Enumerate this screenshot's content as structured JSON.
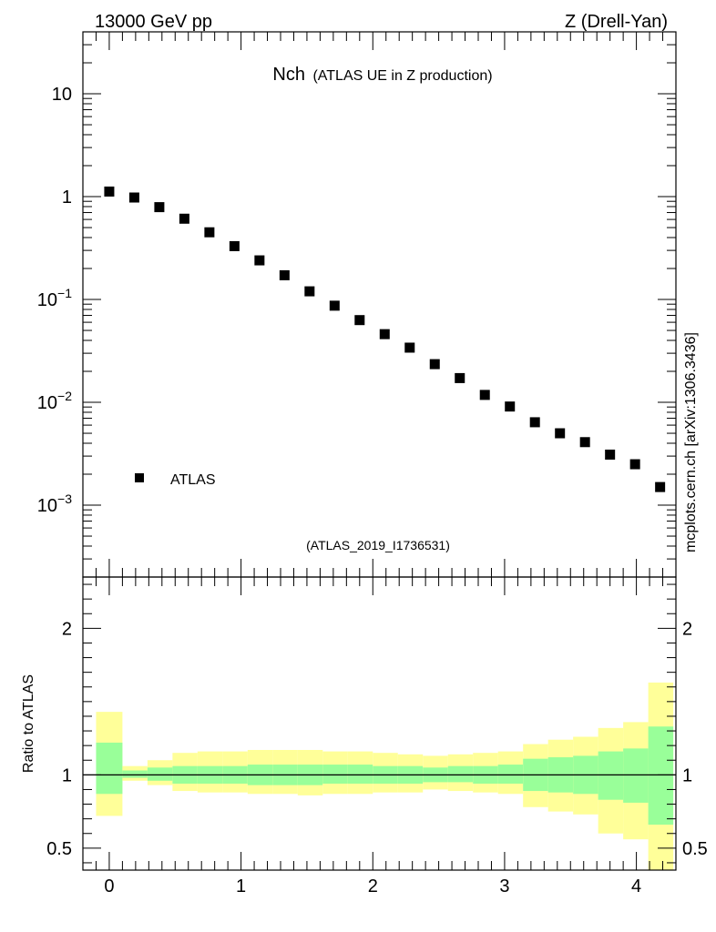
{
  "header": {
    "left": "13000 GeV pp",
    "right": "Z (Drell-Yan)"
  },
  "side_note": "mcplots.cern.ch [arXiv:1306.3436]",
  "chart_data": [
    {
      "type": "scatter",
      "title_main": "Nch",
      "title_sub": "(ATLAS UE in Z production)",
      "analysis_label": "(ATLAS_2019_I1736531)",
      "yscale": "log",
      "ylim": [
        0.0002,
        40
      ],
      "xlim": [
        -0.2,
        4.3
      ],
      "ytick_labels": [
        {
          "value": 10,
          "base": "10",
          "exp": ""
        },
        {
          "value": 1,
          "base": "1",
          "exp": ""
        },
        {
          "value": 0.1,
          "base": "10",
          "exp": "−1"
        },
        {
          "value": 0.01,
          "base": "10",
          "exp": "−2"
        },
        {
          "value": 0.001,
          "base": "10",
          "exp": "−3"
        }
      ],
      "legend": {
        "label": "ATLAS",
        "placement": "lower-left"
      },
      "series": [
        {
          "name": "ATLAS",
          "x": [
            0.0,
            0.19,
            0.38,
            0.57,
            0.76,
            0.95,
            1.14,
            1.33,
            1.52,
            1.71,
            1.9,
            2.09,
            2.28,
            2.47,
            2.66,
            2.85,
            3.04,
            3.23,
            3.42,
            3.61,
            3.8,
            3.99,
            4.18
          ],
          "y": [
            1.12,
            0.98,
            0.79,
            0.61,
            0.45,
            0.33,
            0.24,
            0.172,
            0.12,
            0.087,
            0.063,
            0.046,
            0.034,
            0.0235,
            0.0172,
            0.0118,
            0.0091,
            0.0064,
            0.005,
            0.0041,
            0.0031,
            0.0025,
            0.0015
          ]
        }
      ]
    },
    {
      "type": "area",
      "ylabel": "Ratio to ATLAS",
      "ylim": [
        0.35,
        2.35
      ],
      "xlim": [
        -0.2,
        4.3
      ],
      "yticks": [
        0.5,
        1,
        2
      ],
      "ytick_labels": [
        "0.5",
        "1",
        "2"
      ],
      "xticks": [
        0,
        1,
        2,
        3,
        4
      ],
      "xtick_labels": [
        "0",
        "1",
        "2",
        "3",
        "4"
      ],
      "reference": 1,
      "bins": [
        {
          "lo": -0.1,
          "hi": 0.1,
          "g": [
            0.87,
            1.22
          ],
          "y": [
            0.72,
            1.43
          ]
        },
        {
          "lo": 0.1,
          "hi": 0.29,
          "g": [
            0.98,
            1.03
          ],
          "y": [
            0.96,
            1.06
          ]
        },
        {
          "lo": 0.29,
          "hi": 0.48,
          "g": [
            0.96,
            1.05
          ],
          "y": [
            0.93,
            1.1
          ]
        },
        {
          "lo": 0.48,
          "hi": 0.67,
          "g": [
            0.94,
            1.06
          ],
          "y": [
            0.89,
            1.15
          ]
        },
        {
          "lo": 0.67,
          "hi": 0.86,
          "g": [
            0.94,
            1.06
          ],
          "y": [
            0.88,
            1.16
          ]
        },
        {
          "lo": 0.86,
          "hi": 1.05,
          "g": [
            0.94,
            1.06
          ],
          "y": [
            0.88,
            1.16
          ]
        },
        {
          "lo": 1.05,
          "hi": 1.24,
          "g": [
            0.93,
            1.07
          ],
          "y": [
            0.87,
            1.17
          ]
        },
        {
          "lo": 1.24,
          "hi": 1.43,
          "g": [
            0.93,
            1.07
          ],
          "y": [
            0.87,
            1.17
          ]
        },
        {
          "lo": 1.43,
          "hi": 1.62,
          "g": [
            0.93,
            1.07
          ],
          "y": [
            0.86,
            1.17
          ]
        },
        {
          "lo": 1.62,
          "hi": 1.81,
          "g": [
            0.94,
            1.07
          ],
          "y": [
            0.87,
            1.16
          ]
        },
        {
          "lo": 1.81,
          "hi": 2.0,
          "g": [
            0.94,
            1.07
          ],
          "y": [
            0.87,
            1.16
          ]
        },
        {
          "lo": 2.0,
          "hi": 2.19,
          "g": [
            0.94,
            1.06
          ],
          "y": [
            0.88,
            1.15
          ]
        },
        {
          "lo": 2.19,
          "hi": 2.38,
          "g": [
            0.94,
            1.06
          ],
          "y": [
            0.88,
            1.14
          ]
        },
        {
          "lo": 2.38,
          "hi": 2.57,
          "g": [
            0.95,
            1.05
          ],
          "y": [
            0.9,
            1.13
          ]
        },
        {
          "lo": 2.57,
          "hi": 2.76,
          "g": [
            0.95,
            1.06
          ],
          "y": [
            0.89,
            1.14
          ]
        },
        {
          "lo": 2.76,
          "hi": 2.95,
          "g": [
            0.94,
            1.06
          ],
          "y": [
            0.88,
            1.15
          ]
        },
        {
          "lo": 2.95,
          "hi": 3.14,
          "g": [
            0.94,
            1.07
          ],
          "y": [
            0.87,
            1.16
          ]
        },
        {
          "lo": 3.14,
          "hi": 3.33,
          "g": [
            0.89,
            1.11
          ],
          "y": [
            0.78,
            1.21
          ]
        },
        {
          "lo": 3.33,
          "hi": 3.52,
          "g": [
            0.88,
            1.12
          ],
          "y": [
            0.75,
            1.24
          ]
        },
        {
          "lo": 3.52,
          "hi": 3.71,
          "g": [
            0.87,
            1.13
          ],
          "y": [
            0.73,
            1.26
          ]
        },
        {
          "lo": 3.71,
          "hi": 3.9,
          "g": [
            0.83,
            1.16
          ],
          "y": [
            0.6,
            1.32
          ]
        },
        {
          "lo": 3.9,
          "hi": 4.09,
          "g": [
            0.81,
            1.18
          ],
          "y": [
            0.56,
            1.36
          ]
        },
        {
          "lo": 4.09,
          "hi": 4.28,
          "g": [
            0.66,
            1.33
          ],
          "y": [
            0.35,
            1.63
          ]
        }
      ]
    }
  ],
  "colors": {
    "inner_band": "#99ff99",
    "outer_band": "#ffff99",
    "marker": "#000000",
    "analysis_label": "#888888",
    "side_note": "#666666"
  }
}
